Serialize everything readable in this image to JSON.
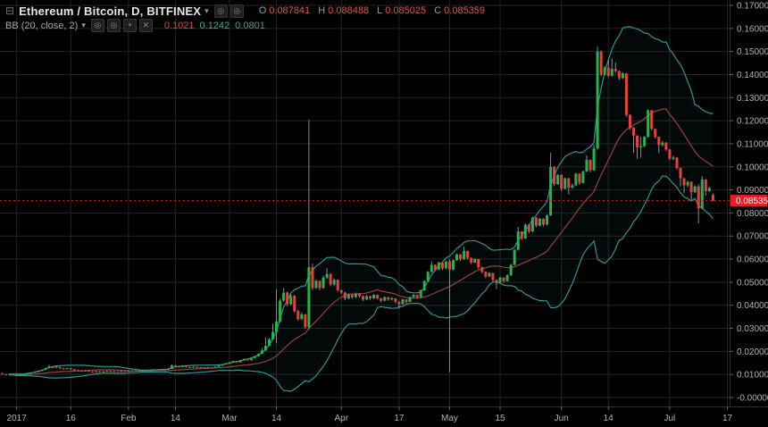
{
  "header": {
    "symbol_title": "Ethereum / Bitcoin, D, BITFINEX",
    "ohlc": [
      {
        "label": "O",
        "value": "0.087841"
      },
      {
        "label": "H",
        "value": "0.088488"
      },
      {
        "label": "L",
        "value": "0.085025"
      },
      {
        "label": "C",
        "value": "0.085359"
      }
    ]
  },
  "indicator": {
    "label": "BB (20, close, 2)",
    "values": [
      "0.1021",
      "0.1242",
      "0.0801"
    ]
  },
  "icons": {
    "collapse": "⊟",
    "caret": "▾",
    "circle": "◎",
    "plus": "+",
    "close": "✕"
  },
  "colors": {
    "background": "#000000",
    "grid": "#232323",
    "up": "#27b24f",
    "down": "#e8403d",
    "wick": "#8a8a8d",
    "band": "#2e9494",
    "band_fill": "rgba(46,148,148,0.06)",
    "basis": "#98403c",
    "price_line": "#e01f26",
    "price_label_bg": "#e01f26",
    "price_label_text": "#ffffff",
    "axis_text": "#b0b0b0",
    "axis_border": "#2e2e33"
  },
  "chart_data": {
    "type": "candlestick",
    "title": "Ethereum / Bitcoin, D, BITFINEX",
    "symbol": "Ethereum / Bitcoin",
    "interval": "D",
    "exchange": "BITFINEX",
    "indicator": "BB (20, close, 2)",
    "bollinger": {
      "period": 20,
      "source": "close",
      "stdev": 2
    },
    "last_price": 0.085359,
    "last_price_label": "0.085359",
    "y_axis": {
      "max": 0.17,
      "min": 0.0,
      "tick_step": 0.01,
      "labels": [
        "0.170000",
        "0.160000",
        "0.150000",
        "0.140000",
        "0.130000",
        "0.120000",
        "0.110000",
        "0.100000",
        "0.090000",
        "0.080000",
        "0.070000",
        "0.060000",
        "0.050000",
        "0.040000",
        "0.030000",
        "0.020000",
        "0.010000",
        "-0.000000"
      ]
    },
    "x_axis": {
      "ticks": [
        {
          "label": "2017",
          "day": 4
        },
        {
          "label": "16",
          "day": 19
        },
        {
          "label": "Feb",
          "day": 35
        },
        {
          "label": "14",
          "day": 48
        },
        {
          "label": "Mar",
          "day": 63
        },
        {
          "label": "14",
          "day": 76
        },
        {
          "label": "Apr",
          "day": 94
        },
        {
          "label": "17",
          "day": 110
        },
        {
          "label": "May",
          "day": 124
        },
        {
          "label": "15",
          "day": 138
        },
        {
          "label": "Jun",
          "day": 155
        },
        {
          "label": "14",
          "day": 168
        },
        {
          "label": "Jul",
          "day": 185
        },
        {
          "label": "17",
          "day": 201
        }
      ]
    },
    "candles": [
      [
        0.0104,
        0.0107,
        0.0099,
        0.0101
      ],
      [
        0.0101,
        0.0103,
        0.0097,
        0.0099
      ],
      [
        0.0099,
        0.0103,
        0.0098,
        0.0101
      ],
      [
        0.0101,
        0.0102,
        0.0096,
        0.0098
      ],
      [
        0.0098,
        0.01,
        0.0094,
        0.0096
      ],
      [
        0.0096,
        0.01,
        0.0095,
        0.0098
      ],
      [
        0.0098,
        0.0103,
        0.0097,
        0.0101
      ],
      [
        0.0101,
        0.0106,
        0.01,
        0.0104
      ],
      [
        0.0104,
        0.0109,
        0.0103,
        0.0107
      ],
      [
        0.0107,
        0.0113,
        0.0106,
        0.0111
      ],
      [
        0.0111,
        0.0117,
        0.011,
        0.0115
      ],
      [
        0.0115,
        0.0122,
        0.0114,
        0.012
      ],
      [
        0.012,
        0.013,
        0.0119,
        0.0127
      ],
      [
        0.0127,
        0.0142,
        0.0126,
        0.0134
      ],
      [
        0.0134,
        0.0136,
        0.0126,
        0.0129
      ],
      [
        0.0129,
        0.0135,
        0.0128,
        0.0133
      ],
      [
        0.0133,
        0.0134,
        0.0124,
        0.0127
      ],
      [
        0.0127,
        0.0129,
        0.0121,
        0.0124
      ],
      [
        0.0124,
        0.0129,
        0.0123,
        0.0127
      ],
      [
        0.0127,
        0.0128,
        0.012,
        0.0122
      ],
      [
        0.0122,
        0.0124,
        0.0116,
        0.0119
      ],
      [
        0.0119,
        0.0121,
        0.0114,
        0.0117
      ],
      [
        0.0117,
        0.0118,
        0.0111,
        0.0114
      ],
      [
        0.0114,
        0.0119,
        0.0113,
        0.0117
      ],
      [
        0.0117,
        0.0118,
        0.0111,
        0.0113
      ],
      [
        0.0113,
        0.0114,
        0.0108,
        0.0111
      ],
      [
        0.0111,
        0.0116,
        0.011,
        0.0114
      ],
      [
        0.0114,
        0.0115,
        0.0109,
        0.0111
      ],
      [
        0.0111,
        0.0115,
        0.011,
        0.0113
      ],
      [
        0.0113,
        0.0117,
        0.0112,
        0.0115
      ],
      [
        0.0115,
        0.0116,
        0.011,
        0.0112
      ],
      [
        0.0112,
        0.0116,
        0.0111,
        0.0114
      ],
      [
        0.0114,
        0.0115,
        0.011,
        0.0112
      ],
      [
        0.0112,
        0.0117,
        0.0111,
        0.0115
      ],
      [
        0.0115,
        0.0116,
        0.0111,
        0.0113
      ],
      [
        0.0113,
        0.0118,
        0.0112,
        0.0116
      ],
      [
        0.0116,
        0.0117,
        0.0112,
        0.0114
      ],
      [
        0.0114,
        0.0119,
        0.0113,
        0.0117
      ],
      [
        0.0117,
        0.0118,
        0.0113,
        0.0115
      ],
      [
        0.0115,
        0.012,
        0.0114,
        0.0118
      ],
      [
        0.0118,
        0.0119,
        0.0114,
        0.0116
      ],
      [
        0.0116,
        0.0121,
        0.0115,
        0.0119
      ],
      [
        0.0119,
        0.0123,
        0.0118,
        0.0121
      ],
      [
        0.0121,
        0.0122,
        0.0117,
        0.0119
      ],
      [
        0.0119,
        0.0124,
        0.0118,
        0.0122
      ],
      [
        0.0122,
        0.0123,
        0.0118,
        0.012
      ],
      [
        0.012,
        0.0126,
        0.0119,
        0.0124
      ],
      [
        0.0124,
        0.0144,
        0.0123,
        0.0139
      ],
      [
        0.0139,
        0.0141,
        0.0133,
        0.0135
      ],
      [
        0.0135,
        0.0137,
        0.013,
        0.0133
      ],
      [
        0.0133,
        0.0138,
        0.0132,
        0.0136
      ],
      [
        0.0136,
        0.0137,
        0.013,
        0.0132
      ],
      [
        0.0132,
        0.0134,
        0.0128,
        0.013
      ],
      [
        0.013,
        0.0135,
        0.0129,
        0.0133
      ],
      [
        0.0133,
        0.0134,
        0.0127,
        0.0129
      ],
      [
        0.0129,
        0.0133,
        0.0128,
        0.0131
      ],
      [
        0.0131,
        0.0132,
        0.0126,
        0.0128
      ],
      [
        0.0128,
        0.0133,
        0.0127,
        0.0131
      ],
      [
        0.0131,
        0.0132,
        0.0127,
        0.0129
      ],
      [
        0.0129,
        0.0135,
        0.0128,
        0.0133
      ],
      [
        0.0133,
        0.014,
        0.0132,
        0.0138
      ],
      [
        0.0138,
        0.0145,
        0.0137,
        0.0143
      ],
      [
        0.0143,
        0.015,
        0.0142,
        0.0148
      ],
      [
        0.0148,
        0.0155,
        0.0147,
        0.0153
      ],
      [
        0.0153,
        0.016,
        0.0152,
        0.0158
      ],
      [
        0.0158,
        0.0159,
        0.015,
        0.0153
      ],
      [
        0.0153,
        0.0163,
        0.0152,
        0.0161
      ],
      [
        0.0161,
        0.0169,
        0.016,
        0.0167
      ],
      [
        0.0167,
        0.0168,
        0.0159,
        0.0162
      ],
      [
        0.0162,
        0.0173,
        0.0161,
        0.0171
      ],
      [
        0.0171,
        0.0181,
        0.017,
        0.0179
      ],
      [
        0.0179,
        0.0191,
        0.0178,
        0.0189
      ],
      [
        0.0189,
        0.0215,
        0.0188,
        0.0204
      ],
      [
        0.0204,
        0.026,
        0.0203,
        0.0224
      ],
      [
        0.0224,
        0.0258,
        0.0222,
        0.0252
      ],
      [
        0.0252,
        0.032,
        0.025,
        0.0284
      ],
      [
        0.0284,
        0.047,
        0.0235,
        0.033
      ],
      [
        0.033,
        0.0428,
        0.0325,
        0.042
      ],
      [
        0.042,
        0.0475,
        0.0415,
        0.0455
      ],
      [
        0.0455,
        0.046,
        0.0395,
        0.0405
      ],
      [
        0.0405,
        0.0448,
        0.04,
        0.044
      ],
      [
        0.044,
        0.0445,
        0.0368,
        0.0375
      ],
      [
        0.0375,
        0.038,
        0.0332,
        0.034
      ],
      [
        0.034,
        0.0368,
        0.0335,
        0.036
      ],
      [
        0.036,
        0.0362,
        0.0298,
        0.0305
      ],
      [
        0.0305,
        0.1205,
        0.0295,
        0.0565
      ],
      [
        0.0565,
        0.058,
        0.0465,
        0.0475
      ],
      [
        0.0475,
        0.0512,
        0.047,
        0.0505
      ],
      [
        0.0505,
        0.0508,
        0.0465,
        0.0475
      ],
      [
        0.0475,
        0.0528,
        0.0472,
        0.052
      ],
      [
        0.052,
        0.056,
        0.0515,
        0.0535
      ],
      [
        0.0535,
        0.0538,
        0.0482,
        0.049
      ],
      [
        0.049,
        0.0516,
        0.0485,
        0.051
      ],
      [
        0.051,
        0.0512,
        0.0458,
        0.0465
      ],
      [
        0.0465,
        0.0468,
        0.0448,
        0.0455
      ],
      [
        0.0455,
        0.0458,
        0.0422,
        0.043
      ],
      [
        0.043,
        0.045,
        0.0426,
        0.0445
      ],
      [
        0.0445,
        0.0447,
        0.0428,
        0.0435
      ],
      [
        0.0435,
        0.0455,
        0.0432,
        0.045
      ],
      [
        0.045,
        0.0452,
        0.0433,
        0.044
      ],
      [
        0.044,
        0.0442,
        0.0418,
        0.0425
      ],
      [
        0.0425,
        0.0444,
        0.0422,
        0.044
      ],
      [
        0.044,
        0.0441,
        0.0424,
        0.043
      ],
      [
        0.043,
        0.0449,
        0.0427,
        0.0445
      ],
      [
        0.0445,
        0.0446,
        0.0424,
        0.043
      ],
      [
        0.043,
        0.0432,
        0.0413,
        0.042
      ],
      [
        0.042,
        0.0439,
        0.0417,
        0.0435
      ],
      [
        0.0435,
        0.0436,
        0.0419,
        0.0425
      ],
      [
        0.0425,
        0.0435,
        0.0421,
        0.043
      ],
      [
        0.043,
        0.0431,
        0.0408,
        0.0415
      ],
      [
        0.0415,
        0.0417,
        0.0385,
        0.0405
      ],
      [
        0.0405,
        0.0428,
        0.0402,
        0.0425
      ],
      [
        0.0425,
        0.0426,
        0.0408,
        0.0415
      ],
      [
        0.0415,
        0.0438,
        0.0412,
        0.0435
      ],
      [
        0.0435,
        0.0448,
        0.0432,
        0.0445
      ],
      [
        0.0445,
        0.0446,
        0.0428,
        0.0435
      ],
      [
        0.0435,
        0.0468,
        0.0432,
        0.0465
      ],
      [
        0.0465,
        0.0508,
        0.0462,
        0.0505
      ],
      [
        0.0505,
        0.0548,
        0.0502,
        0.0545
      ],
      [
        0.0545,
        0.059,
        0.0542,
        0.0575
      ],
      [
        0.0575,
        0.0577,
        0.0548,
        0.0555
      ],
      [
        0.0555,
        0.0588,
        0.0552,
        0.0585
      ],
      [
        0.0585,
        0.0587,
        0.0552,
        0.056
      ],
      [
        0.056,
        0.0593,
        0.0557,
        0.059
      ],
      [
        0.059,
        0.06,
        0.011,
        0.0555
      ],
      [
        0.0555,
        0.0598,
        0.0552,
        0.0595
      ],
      [
        0.0595,
        0.0624,
        0.0592,
        0.062
      ],
      [
        0.062,
        0.0622,
        0.0592,
        0.06
      ],
      [
        0.06,
        0.0655,
        0.0597,
        0.0635
      ],
      [
        0.0635,
        0.0637,
        0.0598,
        0.0605
      ],
      [
        0.0605,
        0.0607,
        0.0578,
        0.0585
      ],
      [
        0.0585,
        0.0604,
        0.0582,
        0.06
      ],
      [
        0.06,
        0.0601,
        0.0558,
        0.0565
      ],
      [
        0.0565,
        0.0567,
        0.0538,
        0.0545
      ],
      [
        0.0545,
        0.0547,
        0.0518,
        0.0525
      ],
      [
        0.0525,
        0.0544,
        0.0522,
        0.054
      ],
      [
        0.054,
        0.0541,
        0.0503,
        0.051
      ],
      [
        0.051,
        0.0512,
        0.047,
        0.05
      ],
      [
        0.05,
        0.0524,
        0.0497,
        0.052
      ],
      [
        0.052,
        0.0521,
        0.0498,
        0.0505
      ],
      [
        0.0505,
        0.0534,
        0.0502,
        0.053
      ],
      [
        0.053,
        0.0579,
        0.0527,
        0.0575
      ],
      [
        0.0575,
        0.0644,
        0.0572,
        0.064
      ],
      [
        0.064,
        0.074,
        0.0637,
        0.072
      ],
      [
        0.072,
        0.0722,
        0.0682,
        0.069
      ],
      [
        0.069,
        0.0754,
        0.0687,
        0.075
      ],
      [
        0.075,
        0.0752,
        0.0712,
        0.072
      ],
      [
        0.072,
        0.0784,
        0.0717,
        0.078
      ],
      [
        0.078,
        0.0782,
        0.0738,
        0.0745
      ],
      [
        0.0745,
        0.0779,
        0.0742,
        0.0775
      ],
      [
        0.0775,
        0.0777,
        0.0742,
        0.075
      ],
      [
        0.075,
        0.0794,
        0.0747,
        0.079
      ],
      [
        0.079,
        0.106,
        0.0787,
        0.1
      ],
      [
        0.1,
        0.1002,
        0.0916,
        0.0925
      ],
      [
        0.0925,
        0.0969,
        0.0922,
        0.0965
      ],
      [
        0.0965,
        0.0967,
        0.0896,
        0.0905
      ],
      [
        0.0905,
        0.0954,
        0.0902,
        0.095
      ],
      [
        0.095,
        0.0952,
        0.088,
        0.091
      ],
      [
        0.091,
        0.0928,
        0.0905,
        0.092
      ],
      [
        0.092,
        0.0974,
        0.0917,
        0.097
      ],
      [
        0.097,
        0.0972,
        0.0922,
        0.093
      ],
      [
        0.093,
        0.0984,
        0.0927,
        0.098
      ],
      [
        0.098,
        0.105,
        0.0977,
        0.103
      ],
      [
        0.103,
        0.1032,
        0.0976,
        0.0985
      ],
      [
        0.0985,
        0.1095,
        0.0982,
        0.108
      ],
      [
        0.108,
        0.152,
        0.1075,
        0.15
      ],
      [
        0.15,
        0.1505,
        0.1392,
        0.14
      ],
      [
        0.14,
        0.1436,
        0.1396,
        0.143
      ],
      [
        0.143,
        0.1465,
        0.1388,
        0.1395
      ],
      [
        0.1395,
        0.147,
        0.1392,
        0.1425
      ],
      [
        0.1425,
        0.1452,
        0.1408,
        0.1415
      ],
      [
        0.1415,
        0.1418,
        0.1376,
        0.1385
      ],
      [
        0.1385,
        0.141,
        0.138,
        0.1405
      ],
      [
        0.1405,
        0.1407,
        0.1218,
        0.1225
      ],
      [
        0.1225,
        0.1228,
        0.116,
        0.117
      ],
      [
        0.117,
        0.1172,
        0.106,
        0.1135
      ],
      [
        0.1135,
        0.1137,
        0.1035,
        0.1085
      ],
      [
        0.1085,
        0.113,
        0.104,
        0.109
      ],
      [
        0.109,
        0.1134,
        0.1086,
        0.113
      ],
      [
        0.113,
        0.125,
        0.1126,
        0.1245
      ],
      [
        0.1245,
        0.1247,
        0.1158,
        0.1165
      ],
      [
        0.1165,
        0.1167,
        0.1122,
        0.113
      ],
      [
        0.113,
        0.1132,
        0.106,
        0.1095
      ],
      [
        0.1095,
        0.1112,
        0.1088,
        0.1105
      ],
      [
        0.1105,
        0.1107,
        0.1068,
        0.1075
      ],
      [
        0.1075,
        0.1077,
        0.1028,
        0.1035
      ],
      [
        0.1035,
        0.1048,
        0.1028,
        0.104
      ],
      [
        0.104,
        0.1042,
        0.0988,
        0.0995
      ],
      [
        0.0995,
        0.0997,
        0.0915,
        0.095
      ],
      [
        0.095,
        0.0952,
        0.0885,
        0.092
      ],
      [
        0.092,
        0.094,
        0.0912,
        0.0935
      ],
      [
        0.0935,
        0.0937,
        0.0855,
        0.089
      ],
      [
        0.089,
        0.092,
        0.0886,
        0.0915
      ],
      [
        0.0915,
        0.0925,
        0.0755,
        0.082
      ],
      [
        0.082,
        0.096,
        0.0816,
        0.0945
      ],
      [
        0.0945,
        0.0947,
        0.0875,
        0.0895
      ],
      [
        0.0895,
        0.0914,
        0.089,
        0.0908
      ],
      [
        0.087841,
        0.088488,
        0.085025,
        0.085359
      ]
    ]
  }
}
